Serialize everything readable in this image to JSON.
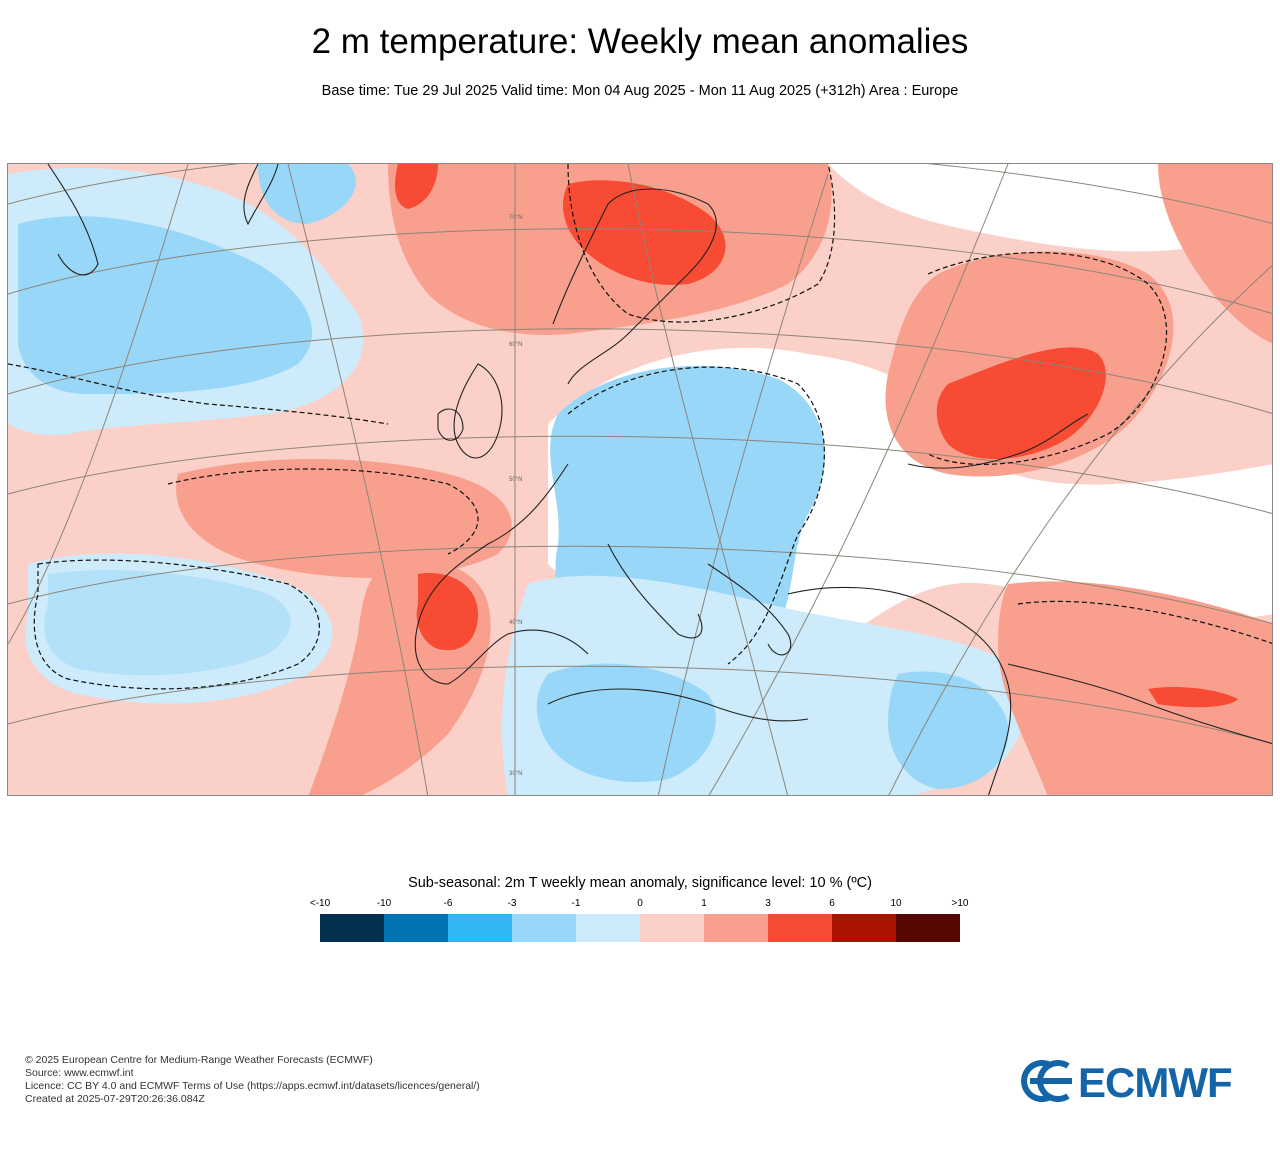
{
  "header": {
    "title": "2 m temperature: Weekly mean anomalies",
    "subtitle": "Base time: Tue 29 Jul 2025 Valid time: Mon 04 Aug 2025 - Mon 11 Aug 2025 (+312h) Area : Europe"
  },
  "map": {
    "region": "Europe",
    "lat_labels": [
      "70°N",
      "60°N",
      "50°N",
      "40°N",
      "30°N"
    ],
    "colors": {
      "neg_10_plus": "#04314f",
      "neg_6_10": "#0373b6",
      "neg_3_6": "#2fb7f6",
      "neg_1_3": "#98d7f8",
      "neg_0_1": "#cdebfa",
      "pos_0_1": "#fbd0c9",
      "pos_1_3": "#f8a08d",
      "pos_3_6": "#f74b33",
      "pos_6_10": "#a81400",
      "pos_10_plus": "#560800"
    }
  },
  "legend": {
    "title": "Sub-seasonal: 2m T weekly mean anomaly, significance level: 10 % (ºC)",
    "labels": [
      "<-10",
      "-10",
      "-6",
      "-3",
      "-1",
      "0",
      "1",
      "3",
      "6",
      "10",
      ">10"
    ],
    "swatches": [
      "#04314f",
      "#0373b6",
      "#2fb7f6",
      "#98d7f8",
      "#cdebfa",
      "#fbd0c9",
      "#f8a08d",
      "#f74b33",
      "#a81400",
      "#560800"
    ]
  },
  "footer": {
    "copyright": "© 2025 European Centre for Medium-Range Weather Forecasts (ECMWF)",
    "source": "Source: www.ecmwf.int",
    "licence": "Licence: CC BY 4.0 and ECMWF Terms of Use (https://apps.ecmwf.int/datasets/licences/general/)",
    "created": "Created at 2025-07-29T20:26:36.084Z"
  },
  "logo": {
    "text": "ECMWF",
    "color": "#1465a8"
  }
}
